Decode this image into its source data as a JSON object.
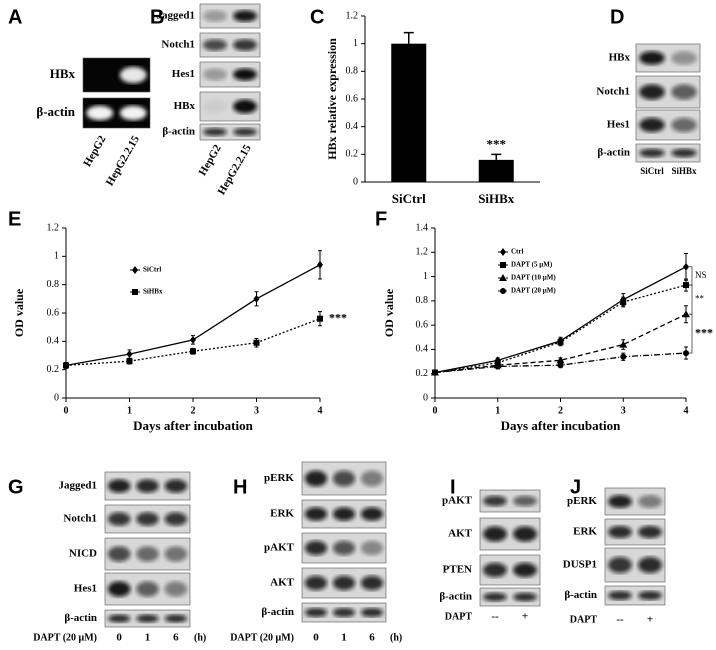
{
  "panels": {
    "A": {
      "label": "A",
      "rows": [
        "HBx",
        "β-actin"
      ],
      "lanes": [
        "HepG2",
        "HepG2.2.15"
      ]
    },
    "B": {
      "label": "B",
      "rows": [
        "Jagged1",
        "Notch1",
        "Hes1",
        "HBx",
        "β-actin"
      ],
      "lanes": [
        "HepG2",
        "HepG2.2.15"
      ]
    },
    "D": {
      "label": "D",
      "rows": [
        "HBx",
        "Notch1",
        "Hes1",
        "β-actin"
      ],
      "lanes": [
        "SiCtrl",
        "SiHBx"
      ]
    },
    "G": {
      "label": "G",
      "rows": [
        "Jagged1",
        "Notch1",
        "NICD",
        "Hes1",
        "β-actin"
      ],
      "treatment": "DAPT (20 μM)",
      "lanes": [
        "0",
        "1",
        "6"
      ],
      "unit": "(h)"
    },
    "H": {
      "label": "H",
      "rows": [
        "pERK",
        "ERK",
        "pAKT",
        "AKT",
        "β-actin"
      ],
      "treatment": "DAPT (20 μM)",
      "lanes": [
        "0",
        "1",
        "6"
      ],
      "unit": "(h)"
    },
    "I": {
      "label": "I",
      "rows": [
        "pAKT",
        "AKT",
        "PTEN",
        "β-actin"
      ],
      "treatment": "DAPT",
      "lanes": [
        "--",
        "+"
      ]
    },
    "J": {
      "label": "J",
      "rows": [
        "pERK",
        "ERK",
        "DUSP1",
        "β-actin"
      ],
      "treatment": "DAPT",
      "lanes": [
        "--",
        "+"
      ]
    }
  },
  "chart_data": [
    {
      "type": "bar",
      "panel": "C",
      "ylabel": "HBx relative expression",
      "categories": [
        "SiCtrl",
        "SiHBx"
      ],
      "values": [
        1,
        0.16
      ],
      "errors": [
        0.08,
        0.04
      ],
      "color": "#000000",
      "ylim": [
        0,
        1.2
      ],
      "yticks": [
        0,
        0.2,
        0.4,
        0.6,
        0.8,
        1,
        1.2
      ],
      "annotations": [
        "***"
      ]
    },
    {
      "type": "line",
      "panel": "E",
      "xlabel": "Days after incubation",
      "ylabel": "OD value",
      "x": [
        0,
        1,
        2,
        3,
        4
      ],
      "xlim": [
        0,
        4
      ],
      "xticks": [
        0,
        1,
        2,
        3,
        4
      ],
      "ylim": [
        0,
        1.2
      ],
      "yticks": [
        0,
        0.2,
        0.4,
        0.6,
        0.8,
        1,
        1.2
      ],
      "legend": "upper left",
      "series": [
        {
          "name": "SiCtrl",
          "color": "#000000",
          "linestyle": "solid",
          "marker": "diamond",
          "values": [
            0.23,
            0.31,
            0.41,
            0.7,
            0.94
          ],
          "errors": [
            0.02,
            0.03,
            0.03,
            0.05,
            0.1
          ]
        },
        {
          "name": "SiHBx",
          "color": "#000000",
          "linestyle": "dotted",
          "marker": "square",
          "values": [
            0.23,
            0.26,
            0.33,
            0.39,
            0.56
          ],
          "errors": [
            0.02,
            0.02,
            0.02,
            0.03,
            0.05
          ]
        }
      ],
      "annotations": [
        "***"
      ]
    },
    {
      "type": "line",
      "panel": "F",
      "xlabel": "Days after incubation",
      "ylabel": "OD value",
      "x": [
        0,
        1,
        2,
        3,
        4
      ],
      "xlim": [
        0,
        4
      ],
      "xticks": [
        0,
        1,
        2,
        3,
        4
      ],
      "ylim": [
        0,
        1.4
      ],
      "yticks": [
        0,
        0.2,
        0.4,
        0.6,
        0.8,
        1,
        1.2,
        1.4
      ],
      "legend": "upper left",
      "series": [
        {
          "name": "Ctrl",
          "color": "#000000",
          "linestyle": "solid",
          "marker": "diamond",
          "values": [
            0.21,
            0.31,
            0.47,
            0.81,
            1.08
          ],
          "errors": [
            0.01,
            0.02,
            0.03,
            0.05,
            0.11
          ]
        },
        {
          "name": "DAPT (5 μM)",
          "color": "#000000",
          "linestyle": "dotted",
          "marker": "square",
          "values": [
            0.21,
            0.29,
            0.46,
            0.79,
            0.93
          ],
          "errors": [
            0.01,
            0.02,
            0.03,
            0.04,
            0.05
          ]
        },
        {
          "name": "DAPT (10 μM)",
          "color": "#000000",
          "linestyle": "dashed",
          "marker": "triangle",
          "values": [
            0.21,
            0.27,
            0.31,
            0.44,
            0.69
          ],
          "errors": [
            0.01,
            0.02,
            0.02,
            0.04,
            0.07
          ]
        },
        {
          "name": "DAPT (20 μM)",
          "color": "#000000",
          "linestyle": "dashdot",
          "marker": "circle",
          "values": [
            0.21,
            0.26,
            0.27,
            0.34,
            0.37
          ],
          "errors": [
            0.01,
            0.02,
            0.02,
            0.03,
            0.05
          ]
        }
      ],
      "annotations": [
        "NS",
        "**",
        "***"
      ]
    }
  ]
}
